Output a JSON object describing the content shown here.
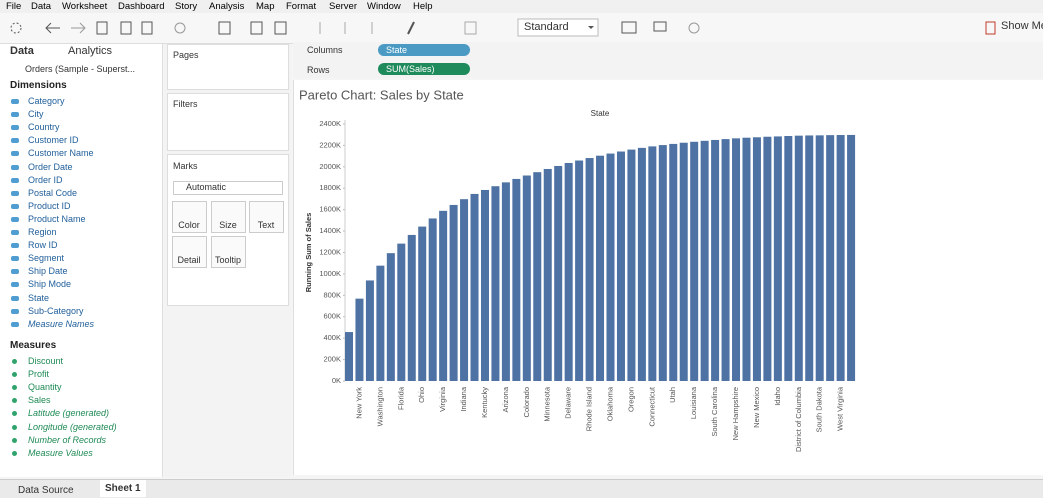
{
  "menu": [
    "File",
    "Data",
    "Worksheet",
    "Dashboard",
    "Story",
    "Analysis",
    "Map",
    "Format",
    "Server",
    "Window",
    "Help"
  ],
  "toolbar": {
    "dropdown": "Standard",
    "show_me": "Show Me"
  },
  "data_pane": {
    "tabs": [
      "Data",
      "Analytics"
    ],
    "source": "Orders (Sample - Superst...",
    "dimensions_title": "Dimensions",
    "dimensions": [
      "Category",
      "City",
      "Country",
      "Customer ID",
      "Customer Name",
      "Order Date",
      "Order ID",
      "Postal Code",
      "Product ID",
      "Product Name",
      "Region",
      "Row ID",
      "Segment",
      "Ship Date",
      "Ship Mode",
      "State",
      "Sub-Category",
      "Measure Names"
    ],
    "measures_title": "Measures",
    "measures": [
      "Discount",
      "Profit",
      "Quantity",
      "Sales",
      "Latitude (generated)",
      "Longitude (generated)",
      "Number of Records",
      "Measure Values"
    ]
  },
  "cards": {
    "pages": "Pages",
    "filters": "Filters",
    "marks": "Marks",
    "mark_type": "Automatic",
    "mark_buttons": [
      "Color",
      "Size",
      "Text",
      "Detail",
      "Tooltip"
    ]
  },
  "shelves": {
    "columns_label": "Columns",
    "columns_pill": "State",
    "rows_label": "Rows",
    "rows_pill": "SUM(Sales)"
  },
  "chart_data": {
    "type": "bar",
    "title": "Pareto Chart: Sales by State",
    "x_label": "State",
    "y_label": "Running Sum of Sales",
    "categories": [
      null,
      "New York",
      null,
      "Washington",
      null,
      "Florida",
      null,
      "Ohio",
      null,
      "Virginia",
      null,
      "Indiana",
      null,
      "Kentucky",
      null,
      "Arizona",
      null,
      "Colorado",
      null,
      "Minnesota",
      null,
      "Delaware",
      null,
      "Rhode Island",
      null,
      "Oklahoma",
      null,
      "Oregon",
      null,
      "Connecticut",
      null,
      "Utah",
      null,
      "Louisiana",
      null,
      "South Carolina",
      null,
      "New Hampshire",
      null,
      "New Mexico",
      null,
      "Idaho",
      null,
      "District of Columbia",
      null,
      "South Dakota",
      null,
      "West Virginia",
      null
    ],
    "values": [
      457,
      769,
      939,
      1077,
      1194,
      1283,
      1364,
      1442,
      1518,
      1589,
      1644,
      1698,
      1747,
      1784,
      1819,
      1855,
      1887,
      1919,
      1950,
      1980,
      2008,
      2036,
      2059,
      2082,
      2104,
      2124,
      2143,
      2161,
      2177,
      2191,
      2203,
      2214,
      2225,
      2234,
      2243,
      2251,
      2259,
      2266,
      2272,
      2276,
      2281,
      2284,
      2288,
      2291,
      2293,
      2294,
      2296,
      2297,
      2298
    ],
    "color": "#4e72a3",
    "ylim": [
      0,
      2400
    ],
    "yticks": [
      {
        "value": 0,
        "label": "0K"
      },
      {
        "value": 200,
        "label": "200K"
      },
      {
        "value": 400,
        "label": "400K"
      },
      {
        "value": 600,
        "label": "600K"
      },
      {
        "value": 800,
        "label": "800K"
      },
      {
        "value": 1000,
        "label": "1000K"
      },
      {
        "value": 1200,
        "label": "1200K"
      },
      {
        "value": 1400,
        "label": "1400K"
      },
      {
        "value": 1600,
        "label": "1600K"
      },
      {
        "value": 1800,
        "label": "1800K"
      },
      {
        "value": 2000,
        "label": "2000K"
      },
      {
        "value": 2200,
        "label": "2200K"
      },
      {
        "value": 2400,
        "label": "2400K"
      }
    ]
  },
  "tabs": {
    "data_source": "Data Source",
    "sheet": "Sheet 1"
  }
}
